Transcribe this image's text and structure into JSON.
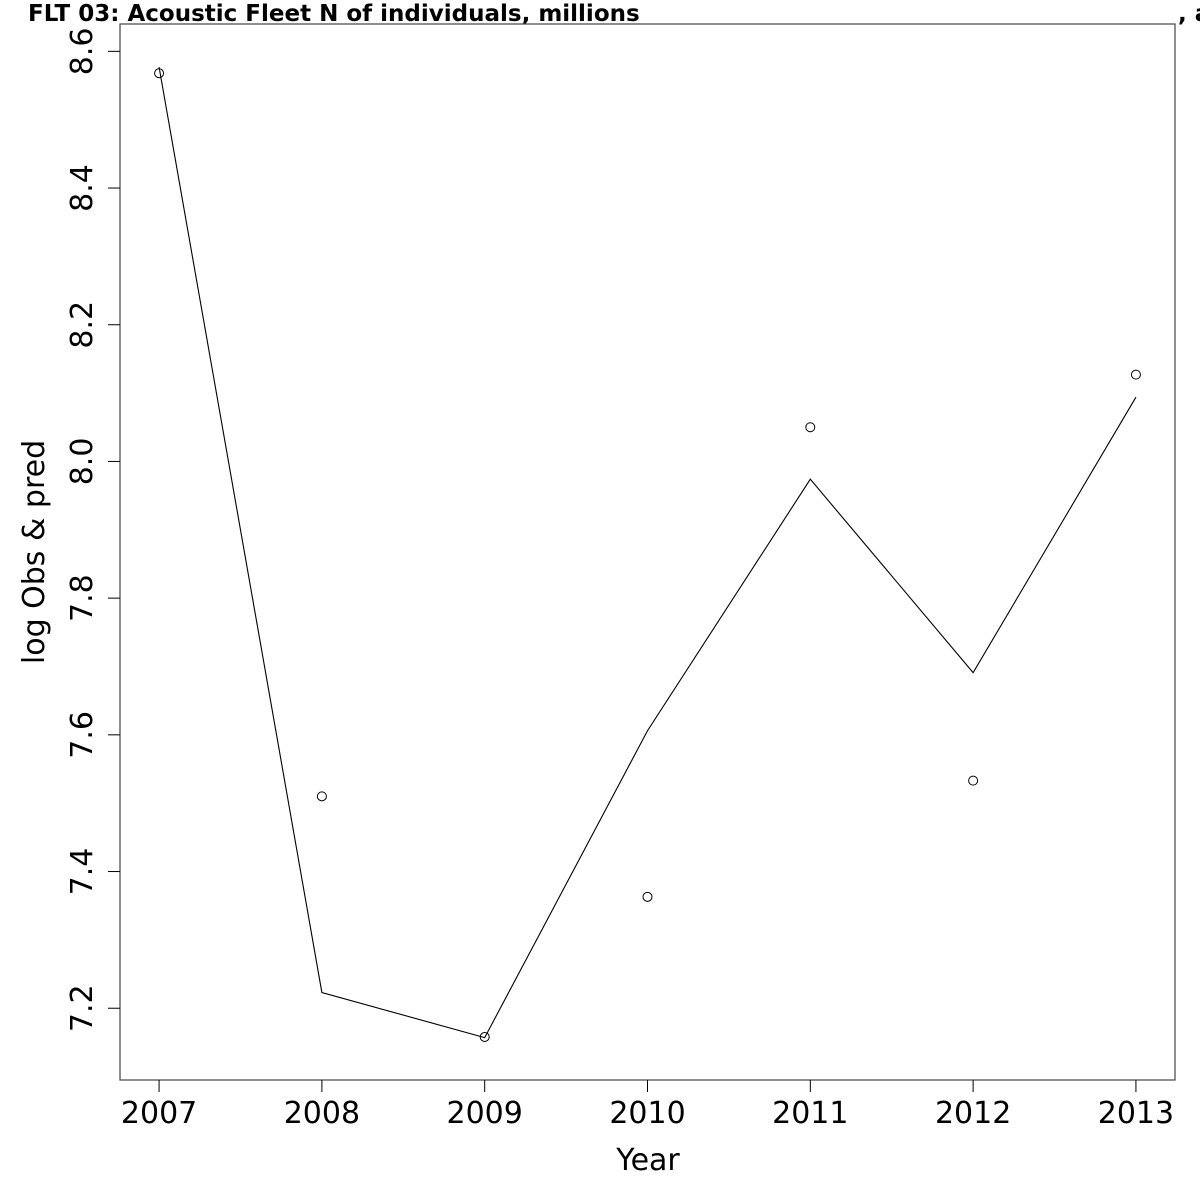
{
  "chart_data": {
    "type": "line",
    "title": "FLT 03: Acoustic Fleet   N of individuals, millions",
    "title_suffix": ", a",
    "xlabel": "Year",
    "ylabel": "log Obs & pred",
    "xlim": [
      2006.76,
      2013.24
    ],
    "ylim": [
      7.095,
      8.64
    ],
    "x_ticks": [
      2007,
      2008,
      2009,
      2010,
      2011,
      2012,
      2013
    ],
    "y_ticks": [
      7.2,
      7.4,
      7.6,
      7.8,
      8.0,
      8.2,
      8.4,
      8.6
    ],
    "x": [
      2007,
      2008,
      2009,
      2010,
      2011,
      2012,
      2013
    ],
    "series": [
      {
        "style": "line",
        "values": [
          8.577,
          7.223,
          7.157,
          7.606,
          7.974,
          7.691,
          8.094
        ]
      },
      {
        "style": "points",
        "values": [
          8.568,
          7.51,
          7.158,
          7.363,
          8.05,
          7.533,
          8.127
        ]
      }
    ],
    "grid": false,
    "legend": "none",
    "colors": {
      "line": "#000000",
      "points": "#000000",
      "frame": "#444444"
    }
  }
}
